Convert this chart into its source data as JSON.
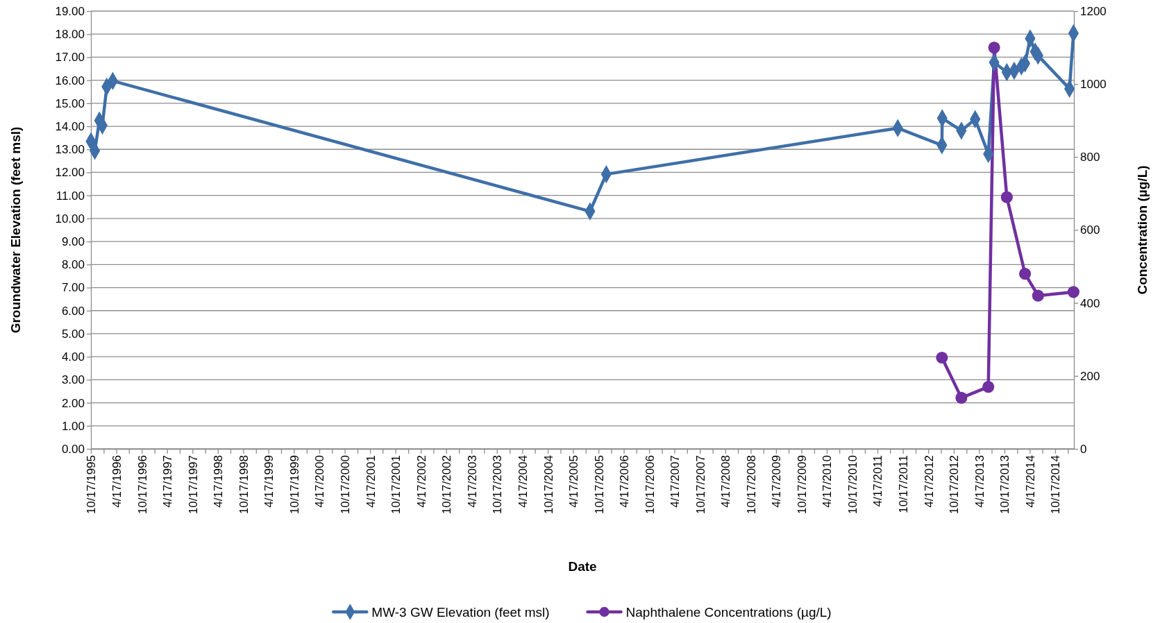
{
  "chart_data": {
    "type": "line",
    "xlabel": "Date",
    "ylabel": "Groundwater Elevation (feet msl)",
    "y2label": "Concentration (µg/L)",
    "xlim": [
      "1995-10-17",
      "2015-03-01"
    ],
    "xticks": [
      {
        "value": "1995-10-17",
        "label": "10/17/1995"
      },
      {
        "value": "1996-01-17",
        "label": null
      },
      {
        "value": "1996-04-17",
        "label": "4/17/1996"
      },
      {
        "value": "1996-07-17",
        "label": null
      },
      {
        "value": "1996-10-17",
        "label": "10/17/1996"
      },
      {
        "value": "1997-01-17",
        "label": null
      },
      {
        "value": "1997-04-17",
        "label": "4/17/1997"
      },
      {
        "value": "1997-07-17",
        "label": null
      },
      {
        "value": "1997-10-17",
        "label": "10/17/1997"
      },
      {
        "value": "1998-01-17",
        "label": null
      },
      {
        "value": "1998-04-17",
        "label": "4/17/1998"
      },
      {
        "value": "1998-07-17",
        "label": null
      },
      {
        "value": "1998-10-17",
        "label": "10/17/1998"
      },
      {
        "value": "1999-01-17",
        "label": null
      },
      {
        "value": "1999-04-17",
        "label": "4/17/1999"
      },
      {
        "value": "1999-07-17",
        "label": null
      },
      {
        "value": "1999-10-17",
        "label": "10/17/1999"
      },
      {
        "value": "2000-01-17",
        "label": null
      },
      {
        "value": "2000-04-17",
        "label": "4/17/2000"
      },
      {
        "value": "2000-07-17",
        "label": null
      },
      {
        "value": "2000-10-17",
        "label": "10/17/2000"
      },
      {
        "value": "2001-01-17",
        "label": null
      },
      {
        "value": "2001-04-17",
        "label": "4/17/2001"
      },
      {
        "value": "2001-07-17",
        "label": null
      },
      {
        "value": "2001-10-17",
        "label": "10/17/2001"
      },
      {
        "value": "2002-01-17",
        "label": null
      },
      {
        "value": "2002-04-17",
        "label": "4/17/2002"
      },
      {
        "value": "2002-07-17",
        "label": null
      },
      {
        "value": "2002-10-17",
        "label": "10/17/2002"
      },
      {
        "value": "2003-01-17",
        "label": null
      },
      {
        "value": "2003-04-17",
        "label": "4/17/2003"
      },
      {
        "value": "2003-07-17",
        "label": null
      },
      {
        "value": "2003-10-17",
        "label": "10/17/2003"
      },
      {
        "value": "2004-01-17",
        "label": null
      },
      {
        "value": "2004-04-17",
        "label": "4/17/2004"
      },
      {
        "value": "2004-07-17",
        "label": null
      },
      {
        "value": "2004-10-17",
        "label": "10/17/2004"
      },
      {
        "value": "2005-01-17",
        "label": null
      },
      {
        "value": "2005-04-17",
        "label": "4/17/2005"
      },
      {
        "value": "2005-07-17",
        "label": null
      },
      {
        "value": "2005-10-17",
        "label": "10/17/2005"
      },
      {
        "value": "2006-01-17",
        "label": null
      },
      {
        "value": "2006-04-17",
        "label": "4/17/2006"
      },
      {
        "value": "2006-07-17",
        "label": null
      },
      {
        "value": "2006-10-17",
        "label": "10/17/2006"
      },
      {
        "value": "2007-01-17",
        "label": null
      },
      {
        "value": "2007-04-17",
        "label": "4/17/2007"
      },
      {
        "value": "2007-07-17",
        "label": null
      },
      {
        "value": "2007-10-17",
        "label": "10/17/2007"
      },
      {
        "value": "2008-01-17",
        "label": null
      },
      {
        "value": "2008-04-17",
        "label": "4/17/2008"
      },
      {
        "value": "2008-07-17",
        "label": null
      },
      {
        "value": "2008-10-17",
        "label": "10/17/2008"
      },
      {
        "value": "2009-01-17",
        "label": null
      },
      {
        "value": "2009-04-17",
        "label": "4/17/2009"
      },
      {
        "value": "2009-07-17",
        "label": null
      },
      {
        "value": "2009-10-17",
        "label": "10/17/2009"
      },
      {
        "value": "2010-01-17",
        "label": null
      },
      {
        "value": "2010-04-17",
        "label": "4/17/2010"
      },
      {
        "value": "2010-07-17",
        "label": null
      },
      {
        "value": "2010-10-17",
        "label": "10/17/2010"
      },
      {
        "value": "2011-01-17",
        "label": null
      },
      {
        "value": "2011-04-17",
        "label": "4/17/2011"
      },
      {
        "value": "2011-07-17",
        "label": null
      },
      {
        "value": "2011-10-17",
        "label": "10/17/2011"
      },
      {
        "value": "2012-01-17",
        "label": null
      },
      {
        "value": "2012-04-17",
        "label": "4/17/2012"
      },
      {
        "value": "2012-07-17",
        "label": null
      },
      {
        "value": "2012-10-17",
        "label": "10/17/2012"
      },
      {
        "value": "2013-01-17",
        "label": null
      },
      {
        "value": "2013-04-17",
        "label": "4/17/2013"
      },
      {
        "value": "2013-07-17",
        "label": null
      },
      {
        "value": "2013-10-17",
        "label": "10/17/2013"
      },
      {
        "value": "2014-01-17",
        "label": null
      },
      {
        "value": "2014-04-17",
        "label": "4/17/2014"
      },
      {
        "value": "2014-07-17",
        "label": null
      },
      {
        "value": "2014-10-17",
        "label": "10/17/2014"
      },
      {
        "value": "2015-01-17",
        "label": null
      }
    ],
    "ylim": [
      0,
      19
    ],
    "yticks": [
      {
        "value": 0,
        "label": "0.00"
      },
      {
        "value": 1,
        "label": "1.00"
      },
      {
        "value": 2,
        "label": "2.00"
      },
      {
        "value": 3,
        "label": "3.00"
      },
      {
        "value": 4,
        "label": "4.00"
      },
      {
        "value": 5,
        "label": "5.00"
      },
      {
        "value": 6,
        "label": "6.00"
      },
      {
        "value": 7,
        "label": "7.00"
      },
      {
        "value": 8,
        "label": "8.00"
      },
      {
        "value": 9,
        "label": "9.00"
      },
      {
        "value": 10,
        "label": "10.00"
      },
      {
        "value": 11,
        "label": "11.00"
      },
      {
        "value": 12,
        "label": "12.00"
      },
      {
        "value": 13,
        "label": "13.00"
      },
      {
        "value": 14,
        "label": "14.00"
      },
      {
        "value": 15,
        "label": "15.00"
      },
      {
        "value": 16,
        "label": "16.00"
      },
      {
        "value": 17,
        "label": "17.00"
      },
      {
        "value": 18,
        "label": "18.00"
      },
      {
        "value": 19,
        "label": "19.00"
      }
    ],
    "y2lim": [
      0,
      1200
    ],
    "y2ticks": [
      0,
      200,
      400,
      600,
      800,
      1000,
      1200
    ],
    "grid": "y",
    "legend": "bottom",
    "series": [
      {
        "name": "MW-3 GW Elevation (feet msl)",
        "color": "#3f6fa8",
        "marker": "diamond",
        "x": [
          "1995-10-17",
          "1995-11-14",
          "1995-12-17",
          "1996-01-07",
          "1996-02-08",
          "1996-03-22",
          "2005-08-17",
          "2005-12-12",
          "2011-09-10",
          "2012-07-24",
          "2012-07-26",
          "2012-12-11",
          "2013-03-20",
          "2013-06-23",
          "2013-08-04",
          "2013-11-03",
          "2013-12-26",
          "2014-02-16",
          "2014-03-14",
          "2014-04-20",
          "2014-05-26",
          "2014-06-16",
          "2015-01-28",
          "2015-02-26"
        ],
        "values": [
          13.35,
          12.94,
          14.25,
          14.04,
          15.72,
          15.97,
          10.31,
          11.92,
          13.92,
          13.18,
          14.35,
          13.81,
          14.31,
          12.8,
          16.77,
          16.35,
          16.41,
          16.6,
          16.73,
          17.81,
          17.24,
          17.07,
          15.63,
          18.04
        ]
      },
      {
        "name": "Naphthalene Concentrations (µg/L)",
        "color": "#7030a0",
        "marker": "circle",
        "axis": "y2",
        "x": [
          "2012-07-24",
          "2012-12-11",
          "2013-06-23",
          "2013-08-04",
          "2013-11-03",
          "2014-03-14",
          "2014-06-16",
          "2015-02-26"
        ],
        "values": [
          250,
          140,
          170,
          1100,
          690,
          480,
          420,
          430
        ]
      }
    ]
  }
}
